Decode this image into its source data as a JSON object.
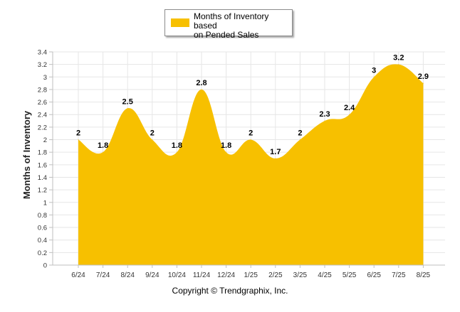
{
  "chart_data": {
    "type": "area",
    "categories": [
      "6/24",
      "7/24",
      "8/24",
      "9/24",
      "10/24",
      "11/24",
      "12/24",
      "1/25",
      "2/25",
      "3/25",
      "4/25",
      "5/25",
      "6/25",
      "7/25",
      "8/25"
    ],
    "series": [
      {
        "name": "Months of Inventory based on Pended Sales",
        "values": [
          2,
          1.8,
          2.5,
          2,
          1.8,
          2.8,
          1.8,
          2,
          1.7,
          2,
          2.3,
          2.4,
          3,
          3.2,
          2.9
        ]
      }
    ],
    "data_labels": [
      "2",
      "1.8",
      "2.5",
      "2",
      "1.8",
      "2.8",
      "1.8",
      "2",
      "1.7",
      "2",
      "2.3",
      "2.4",
      "3",
      "3.2",
      "2.9"
    ],
    "ylabel": "Months of Inventory",
    "ylim": [
      0,
      3.4
    ],
    "yticks": [
      "0",
      "0.2",
      "0.4",
      "0.6",
      "0.8",
      "1",
      "1.2",
      "1.4",
      "1.6",
      "1.8",
      "2",
      "2.2",
      "2.4",
      "2.6",
      "2.8",
      "3",
      "3.2",
      "3.4"
    ],
    "grid": true,
    "legend_position": "top-center"
  },
  "legend": {
    "label_line1": "Months of Inventory based",
    "label_line2": "on Pended Sales"
  },
  "footer": {
    "copyright": "Copyright © Trendgraphix, Inc."
  },
  "colors": {
    "fill": "#f7c000",
    "grid": "#e6e6e6",
    "axis": "#bfbfbf",
    "text": "#000000"
  }
}
